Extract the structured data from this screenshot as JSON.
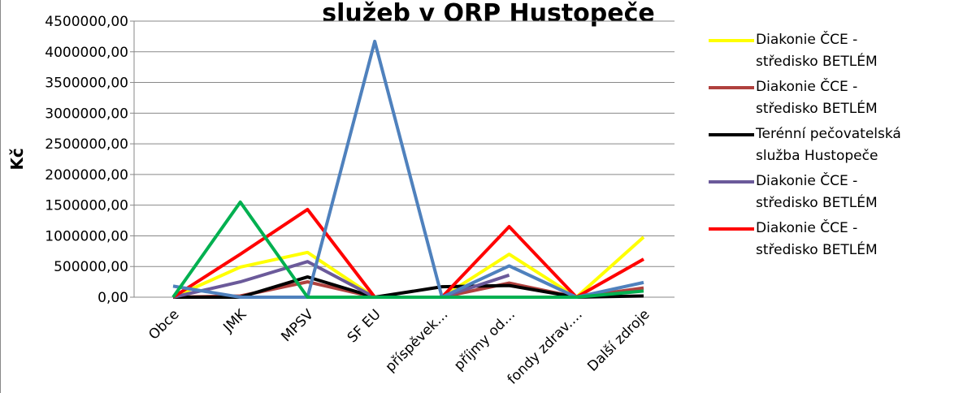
{
  "chart_data": {
    "type": "line",
    "title": "služeb v ORP Hustopeče",
    "y_label": "Kč",
    "categories": [
      "Obce",
      "JMK",
      "MPSV",
      "SF EU",
      "příspěvek…",
      "příjmy od…",
      "fondy zdrav.…",
      "Další zdroje"
    ],
    "series": [
      {
        "name": "Diakonie ČCE - středisko BETLÉM",
        "color": "#ffff00",
        "values": [
          0,
          490000,
          730000,
          0,
          0,
          700000,
          0,
          980000
        ]
      },
      {
        "name": "Diakonie ČCE - středisko BETLÉM",
        "color": "#b0413e",
        "values": [
          0,
          20000,
          250000,
          0,
          0,
          230000,
          0,
          150000
        ]
      },
      {
        "name": "Terénní pečovatelská služba Hustopeče",
        "color": "#000000",
        "values": [
          0,
          0,
          330000,
          0,
          170000,
          190000,
          0,
          20000
        ]
      },
      {
        "name": "Diakonie ČCE - středisko BETLÉM",
        "color": "#6b5a9a",
        "values": [
          0,
          250000,
          580000,
          0,
          0,
          360000,
          null,
          null
        ]
      },
      {
        "name": "Diakonie ČCE - středisko BETLÉM",
        "color": "#ff0000",
        "values": [
          0,
          700000,
          1430000,
          0,
          0,
          1150000,
          0,
          620000
        ]
      },
      {
        "name": null,
        "color": "#4f81bd",
        "values": [
          180000,
          0,
          0,
          4170000,
          0,
          510000,
          0,
          240000
        ]
      },
      {
        "name": null,
        "color": "#00b050",
        "values": [
          0,
          1550000,
          0,
          0,
          0,
          0,
          0,
          100000
        ]
      }
    ],
    "ylim": [
      0,
      4500000
    ],
    "yticks": [
      {
        "value": 0,
        "label": "0,00"
      },
      {
        "value": 500000,
        "label": "500000,00"
      },
      {
        "value": 1000000,
        "label": "1000000,00"
      },
      {
        "value": 1500000,
        "label": "1500000,00"
      },
      {
        "value": 2000000,
        "label": "2000000,00"
      },
      {
        "value": 2500000,
        "label": "2500000,00"
      },
      {
        "value": 3000000,
        "label": "3000000,00"
      },
      {
        "value": 3500000,
        "label": "3500000,00"
      },
      {
        "value": 4000000,
        "label": "4000000,00"
      },
      {
        "value": 4500000,
        "label": "4500000,00"
      }
    ],
    "grid": true,
    "legend": "right"
  }
}
